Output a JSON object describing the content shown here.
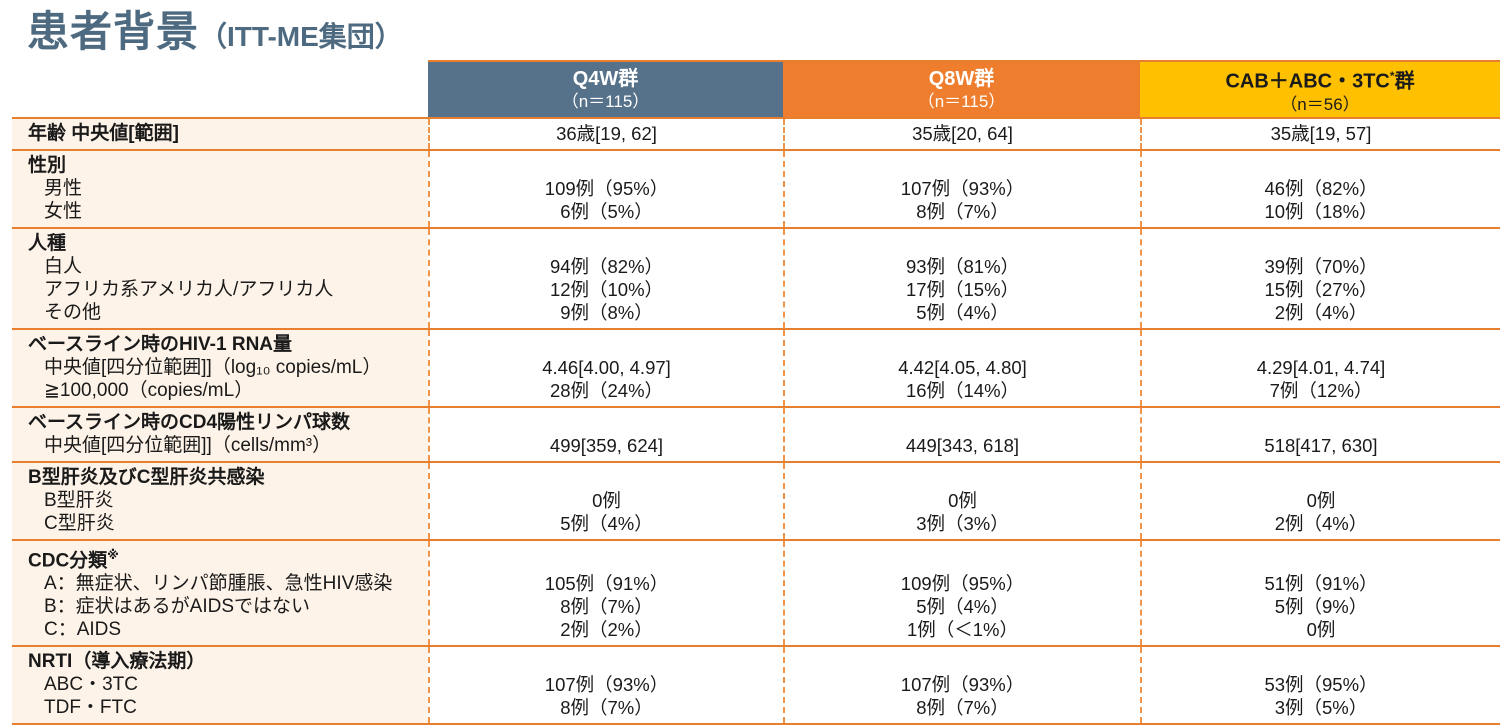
{
  "page": {
    "title_main": "患者背景",
    "title_sub": "（ITT-ME集団）"
  },
  "colors": {
    "title": "#4E6A80",
    "border_orange": "#E87F2F",
    "border_orange_dashed": "#EF9449",
    "label_column_bg": "#FDF3E8",
    "q4w_header_bg": "#56718A",
    "q8w_header_bg": "#EE7D2E",
    "cab_header_bg": "#FFC000"
  },
  "table": {
    "columns": [
      {
        "label": "Q4W群",
        "sup": "",
        "suffix": "",
        "sublabel": "（n＝115）",
        "bg": "#56718A",
        "color": "#FFFFFF"
      },
      {
        "label": "Q8W群",
        "sup": "",
        "suffix": "",
        "sublabel": "（n＝115）",
        "bg": "#EE7D2E",
        "color": "#FFFFFF"
      },
      {
        "label": "CAB＋ABC・3TC",
        "sup": "*",
        "suffix": "群",
        "sublabel": "（n＝56）",
        "bg": "#FFC000",
        "color": "#1A1A1A"
      }
    ],
    "groups": [
      {
        "rows": [
          {
            "label": "年齢 中央値[範囲]",
            "bold": true,
            "values": [
              "36歳[19, 62]",
              "35歳[20, 64]",
              "35歳[19, 57]"
            ]
          }
        ]
      },
      {
        "rows": [
          {
            "label": "性別",
            "bold": true
          },
          {
            "label": "男性",
            "indent": true,
            "values": [
              "109例（95%）",
              "107例（93%）",
              "46例（82%）"
            ]
          },
          {
            "label": "女性",
            "indent": true,
            "values": [
              "6例（5%）",
              "8例（7%）",
              "10例（18%）"
            ]
          }
        ]
      },
      {
        "rows": [
          {
            "label": "人種",
            "bold": true
          },
          {
            "label": "白人",
            "indent": true,
            "values": [
              "94例（82%）",
              "93例（81%）",
              "39例（70%）"
            ]
          },
          {
            "label": "アフリカ系アメリカ人/アフリカ人",
            "indent": true,
            "values": [
              "12例（10%）",
              "17例（15%）",
              "15例（27%）"
            ]
          },
          {
            "label": "その他",
            "indent": true,
            "values": [
              "9例（8%）",
              "5例（4%）",
              "2例（4%）"
            ]
          }
        ]
      },
      {
        "rows": [
          {
            "label": "ベースライン時のHIV-1 RNA量",
            "bold": true
          },
          {
            "label": "中央値[四分位範囲]]（log₁₀ copies/mL）",
            "indent": true,
            "values": [
              "4.46[4.00, 4.97]",
              "4.42[4.05, 4.80]",
              "4.29[4.01, 4.74]"
            ]
          },
          {
            "label": "≧100,000（copies/mL）",
            "indent": true,
            "values": [
              "28例（24%）",
              "16例（14%）",
              "7例（12%）"
            ]
          }
        ]
      },
      {
        "rows": [
          {
            "label": "ベースライン時のCD4陽性リンパ球数",
            "bold": true
          },
          {
            "label": "中央値[四分位範囲]]（cells/mm³）",
            "indent": true,
            "values": [
              "499[359, 624]",
              "449[343, 618]",
              "518[417, 630]"
            ]
          }
        ]
      },
      {
        "rows": [
          {
            "label": "B型肝炎及びC型肝炎共感染",
            "bold": true
          },
          {
            "label": "B型肝炎",
            "indent": true,
            "values": [
              "0例",
              "0例",
              "0例"
            ]
          },
          {
            "label": "C型肝炎",
            "indent": true,
            "values": [
              "5例（4%）",
              "3例（3%）",
              "2例（4%）"
            ]
          }
        ]
      },
      {
        "rows": [
          {
            "label": "CDC分類",
            "sup": "※",
            "bold": true
          },
          {
            "label": "A：無症状、リンパ節腫脹、急性HIV感染",
            "indent": true,
            "values": [
              "105例（91%）",
              "109例（95%）",
              "51例（91%）"
            ]
          },
          {
            "label": "B：症状はあるがAIDSではない",
            "indent": true,
            "values": [
              "8例（7%）",
              "5例（4%）",
              "5例（9%）"
            ]
          },
          {
            "label": "C：AIDS",
            "indent": true,
            "values": [
              "2例（2%）",
              "1例（＜1%）",
              "0例"
            ]
          }
        ]
      },
      {
        "rows": [
          {
            "label": "NRTI（導入療法期）",
            "bold": true
          },
          {
            "label": "ABC・3TC",
            "indent": true,
            "values": [
              "107例（93%）",
              "107例（93%）",
              "53例（95%）"
            ]
          },
          {
            "label": "TDF・FTC",
            "indent": true,
            "values": [
              "8例（7%）",
              "8例（7%）",
              "3例（5%）"
            ]
          }
        ]
      }
    ]
  }
}
